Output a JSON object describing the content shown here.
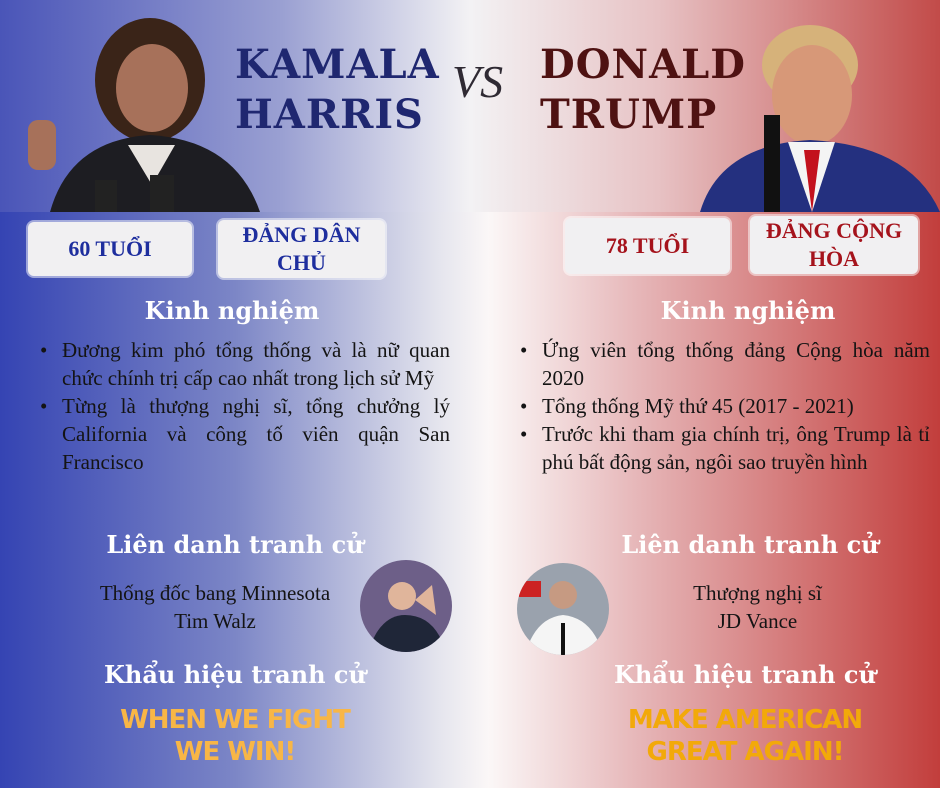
{
  "left": {
    "first_name": "KAMALA",
    "last_name": "HARRIS",
    "age": "60 TUỔI",
    "party_line1": "ĐẢNG DÂN",
    "party_line2": "CHỦ",
    "experience_heading": "Kinh nghiệm",
    "experience": [
      "Đương kim phó tổng thống và là nữ quan chức chính trị cấp cao nhất trong lịch sử Mỹ",
      "Từng là thượng nghị sĩ, tổng chưởng lý California và công tố viên quận San Francisco"
    ],
    "running_mate_heading": "Liên danh tranh cử",
    "running_mate_title": "Thống đốc bang Minnesota",
    "running_mate_name": "Tim Walz",
    "slogan_heading": "Khẩu hiệu tranh cử",
    "slogan_line1": "WHEN WE FIGHT",
    "slogan_line2": "WE WIN!"
  },
  "vs": "VS",
  "right": {
    "first_name": "DONALD",
    "last_name": "TRUMP",
    "age": "78 TUỔI",
    "party_line1": "ĐẢNG CỘNG",
    "party_line2": "HÒA",
    "experience_heading": "Kinh nghiệm",
    "experience": [
      "Ứng viên tổng thống đảng Cộng hòa năm 2020",
      "Tổng thống Mỹ thứ 45 (2017 - 2021)",
      "Trước khi tham gia chính trị, ông Trump là tỉ phú bất động sản, ngôi sao truyền hình"
    ],
    "running_mate_heading": "Liên danh tranh cử",
    "running_mate_title": "Thượng nghị sĩ",
    "running_mate_name": "JD Vance",
    "slogan_heading": "Khẩu hiệu tranh cử",
    "slogan_line1": "MAKE AMERICAN",
    "slogan_line2": "GREAT AGAIN!"
  },
  "colors": {
    "democrat_blue": "#1e2e9e",
    "republican_red": "#a5131c",
    "left_title": "#1f2770",
    "right_title": "#4e1212",
    "left_slogan": "#f8b646",
    "right_slogan": "#f2a90a"
  }
}
